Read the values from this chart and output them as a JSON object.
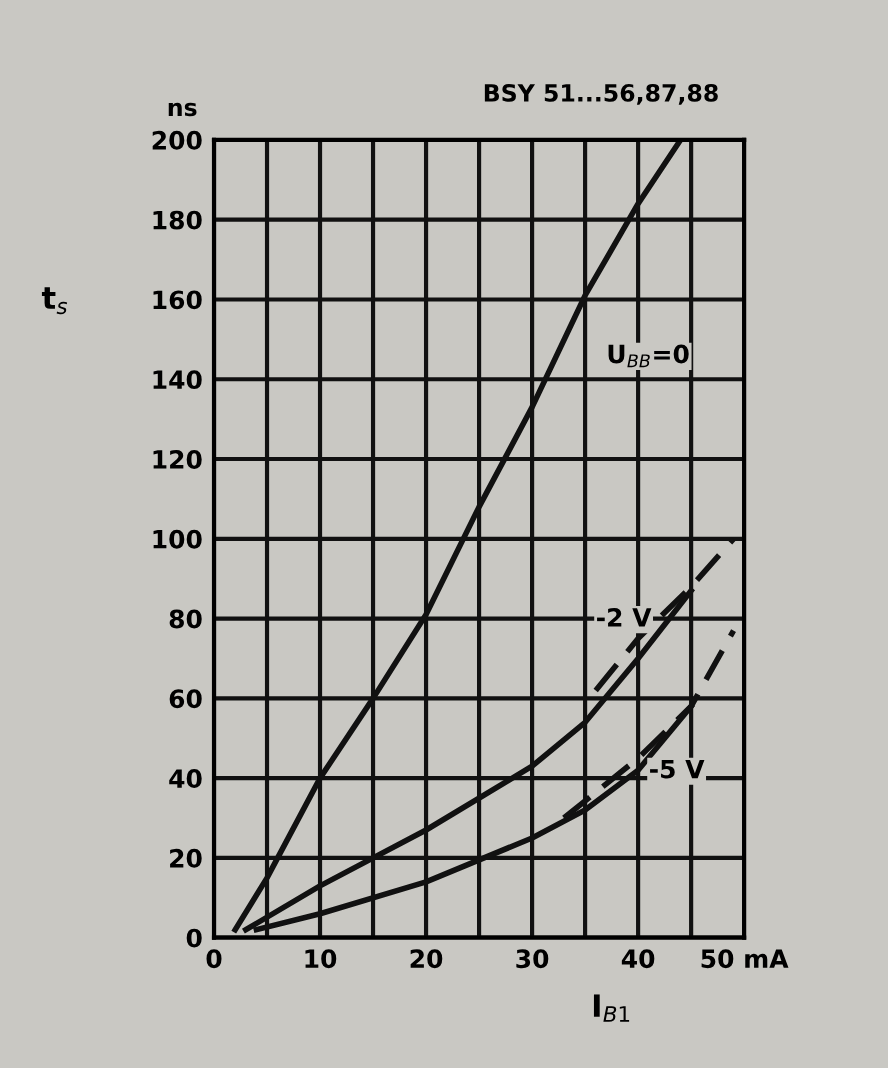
{
  "chart_data": {
    "type": "line",
    "title": "BSY 51...56,87,88",
    "xlabel": "I$_{B1}$",
    "ylabel": "t$_{s}$",
    "xlim": [
      0,
      50
    ],
    "ylim": [
      0,
      200
    ],
    "xticks": [
      0,
      {
        "value": 5,
        "label": null
      },
      10,
      {
        "value": 15,
        "label": null
      },
      20,
      {
        "value": 25,
        "label": null
      },
      30,
      {
        "value": 35,
        "label": null
      },
      40,
      {
        "value": 45,
        "label": null
      },
      {
        "value": 50,
        "label": "50 mA"
      }
    ],
    "yticks": [
      0,
      20,
      40,
      60,
      80,
      100,
      120,
      140,
      160,
      180,
      {
        "value": 200,
        "label": "200"
      }
    ],
    "grid": true,
    "marker": "none",
    "series": [
      {
        "color": "#111111",
        "line_style": "solid",
        "x": [
          2,
          5,
          10,
          15,
          20,
          25,
          30,
          35,
          40,
          44
        ],
        "values": [
          2,
          15,
          40,
          60,
          81,
          108,
          133,
          161,
          184,
          200
        ]
      },
      {
        "color": "#111111",
        "line_style": "solid",
        "x": [
          3,
          10,
          20,
          30,
          35,
          40,
          45
        ],
        "values": [
          2,
          13,
          27,
          43,
          54,
          70,
          87
        ]
      },
      {
        "color": "#111111",
        "line_style": "dashed",
        "x": [
          36,
          40,
          45,
          49
        ],
        "values": [
          62,
          75,
          88,
          100
        ]
      },
      {
        "color": "#111111",
        "line_style": "solid",
        "x": [
          4,
          10,
          20,
          30,
          35,
          40,
          45
        ],
        "values": [
          2,
          6,
          14,
          25,
          32,
          42,
          58
        ]
      },
      {
        "color": "#111111",
        "line_style": "dashed",
        "x": [
          33,
          40,
          45,
          49
        ],
        "values": [
          30,
          45,
          58,
          77
        ]
      }
    ],
    "annotations": [
      "ns",
      "U$_{BB}$=0",
      "-2 V",
      "-5 V"
    ]
  }
}
